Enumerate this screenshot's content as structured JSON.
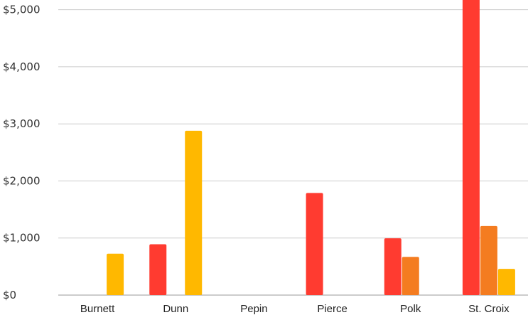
{
  "chart_data": {
    "type": "bar",
    "categories": [
      "Burnett",
      "Dunn",
      "Pepin",
      "Pierce",
      "Polk",
      "St. Croix"
    ],
    "series": [
      {
        "color": "#ff3b30",
        "values": [
          0,
          890,
          0,
          1790,
          995,
          5300
        ]
      },
      {
        "color": "#f47c20",
        "values": [
          0,
          0,
          0,
          0,
          670,
          1210
        ]
      },
      {
        "color": "#ffb800",
        "values": [
          725,
          2880,
          0,
          0,
          0,
          460
        ]
      }
    ],
    "yticks": [
      {
        "value": 0,
        "label": "$0"
      },
      {
        "value": 1000,
        "label": "$1,000"
      },
      {
        "value": 2000,
        "label": "$2,000"
      },
      {
        "value": 3000,
        "label": "$3,000"
      },
      {
        "value": 4000,
        "label": "$4,000"
      },
      {
        "value": 5000,
        "label": "$5,000"
      }
    ],
    "ylim": [
      0,
      5170
    ],
    "grid": true,
    "title": "",
    "xlabel": "",
    "ylabel": ""
  }
}
